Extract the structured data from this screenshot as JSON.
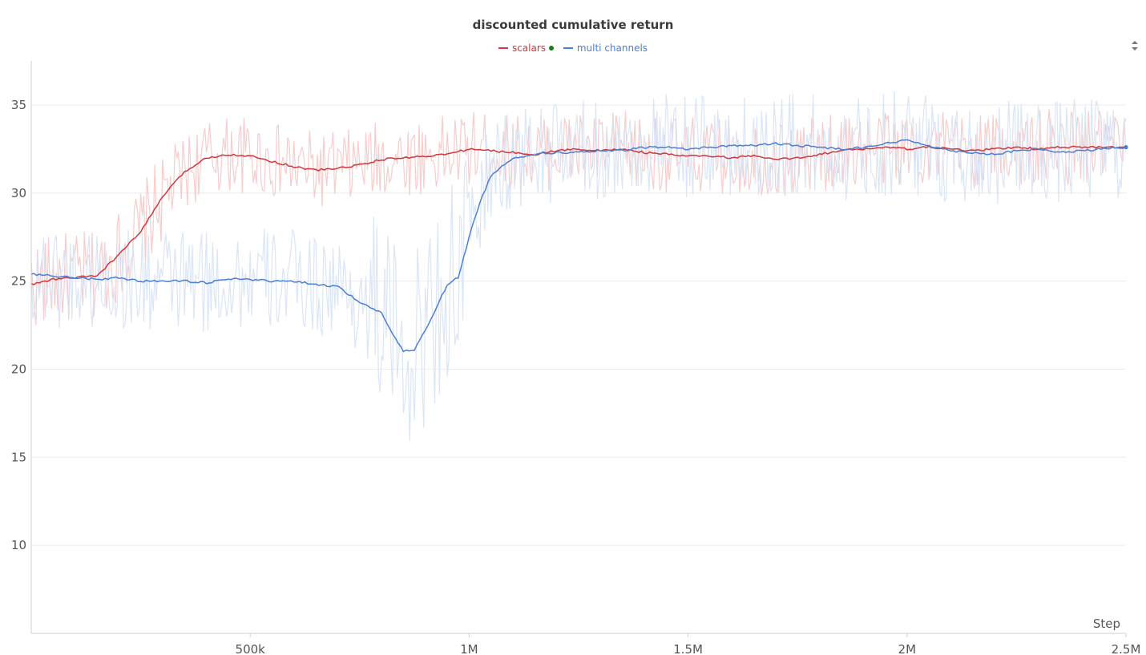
{
  "chart_data": {
    "type": "line",
    "title": "discounted cumulative return",
    "xlabel": "Step",
    "ylabel": "",
    "xlim": [
      0,
      2500000
    ],
    "ylim": [
      5.0,
      37.5
    ],
    "grid": true,
    "legend_position": "top-center",
    "x_ticks": [
      {
        "value": 500000,
        "label": "500k"
      },
      {
        "value": 1000000,
        "label": "1M"
      },
      {
        "value": 1500000,
        "label": "1.5M"
      },
      {
        "value": 2000000,
        "label": "2M"
      },
      {
        "value": 2500000,
        "label": "2.5M"
      }
    ],
    "y_ticks": [
      {
        "value": 10,
        "label": "10"
      },
      {
        "value": 15,
        "label": "15"
      },
      {
        "value": 20,
        "label": "20"
      },
      {
        "value": 25,
        "label": "25"
      },
      {
        "value": 30,
        "label": "30"
      },
      {
        "value": 35,
        "label": "35"
      }
    ],
    "series": [
      {
        "name": "scalars",
        "color": "#d0373b",
        "raw_color": "#f5c6c7",
        "active_marker_color": "#1a7f1a",
        "smoothed": {
          "x": [
            0,
            50000,
            100000,
            150000,
            200000,
            250000,
            300000,
            350000,
            400000,
            450000,
            500000,
            550000,
            600000,
            650000,
            700000,
            750000,
            800000,
            850000,
            900000,
            950000,
            1000000,
            1050000,
            1100000,
            1150000,
            1200000,
            1250000,
            1300000,
            1350000,
            1400000,
            1450000,
            1500000,
            1550000,
            1600000,
            1650000,
            1700000,
            1750000,
            1800000,
            1850000,
            1900000,
            1950000,
            2000000,
            2050000,
            2100000,
            2150000,
            2200000,
            2250000,
            2300000,
            2350000,
            2400000,
            2450000,
            2500000
          ],
          "y": [
            24.8,
            25.1,
            25.2,
            25.3,
            26.5,
            27.8,
            29.8,
            31.2,
            32.0,
            32.2,
            32.1,
            31.8,
            31.5,
            31.3,
            31.4,
            31.6,
            31.9,
            32.0,
            32.1,
            32.2,
            32.5,
            32.4,
            32.3,
            32.2,
            32.4,
            32.5,
            32.4,
            32.5,
            32.3,
            32.2,
            32.1,
            32.1,
            32.0,
            32.1,
            31.9,
            32.0,
            32.2,
            32.4,
            32.5,
            32.6,
            32.5,
            32.6,
            32.5,
            32.4,
            32.5,
            32.6,
            32.5,
            32.6,
            32.6,
            32.6,
            32.6
          ]
        },
        "noise": 2.2
      },
      {
        "name": "multi channels",
        "color": "#4a7fd6",
        "raw_color": "#d6e2f5",
        "smoothed": {
          "x": [
            0,
            50000,
            100000,
            150000,
            200000,
            250000,
            300000,
            350000,
            400000,
            450000,
            500000,
            550000,
            600000,
            650000,
            700000,
            750000,
            800000,
            825000,
            850000,
            875000,
            900000,
            925000,
            950000,
            975000,
            1000000,
            1025000,
            1050000,
            1100000,
            1150000,
            1200000,
            1250000,
            1300000,
            1350000,
            1400000,
            1450000,
            1500000,
            1550000,
            1600000,
            1650000,
            1700000,
            1750000,
            1800000,
            1850000,
            1900000,
            1950000,
            2000000,
            2050000,
            2100000,
            2150000,
            2200000,
            2250000,
            2300000,
            2350000,
            2400000,
            2450000,
            2500000
          ],
          "y": [
            25.4,
            25.3,
            25.2,
            25.1,
            25.2,
            25.0,
            25.0,
            25.0,
            24.9,
            25.1,
            25.1,
            25.0,
            25.0,
            24.8,
            24.7,
            23.8,
            23.2,
            22.0,
            21.0,
            21.1,
            22.2,
            23.5,
            24.8,
            25.2,
            27.5,
            29.5,
            31.0,
            32.0,
            32.2,
            32.3,
            32.3,
            32.4,
            32.4,
            32.6,
            32.6,
            32.5,
            32.6,
            32.7,
            32.7,
            32.8,
            32.7,
            32.6,
            32.5,
            32.6,
            32.8,
            33.0,
            32.7,
            32.4,
            32.3,
            32.2,
            32.4,
            32.5,
            32.3,
            32.4,
            32.5,
            32.6
          ]
        },
        "noise": 3.0
      }
    ]
  }
}
